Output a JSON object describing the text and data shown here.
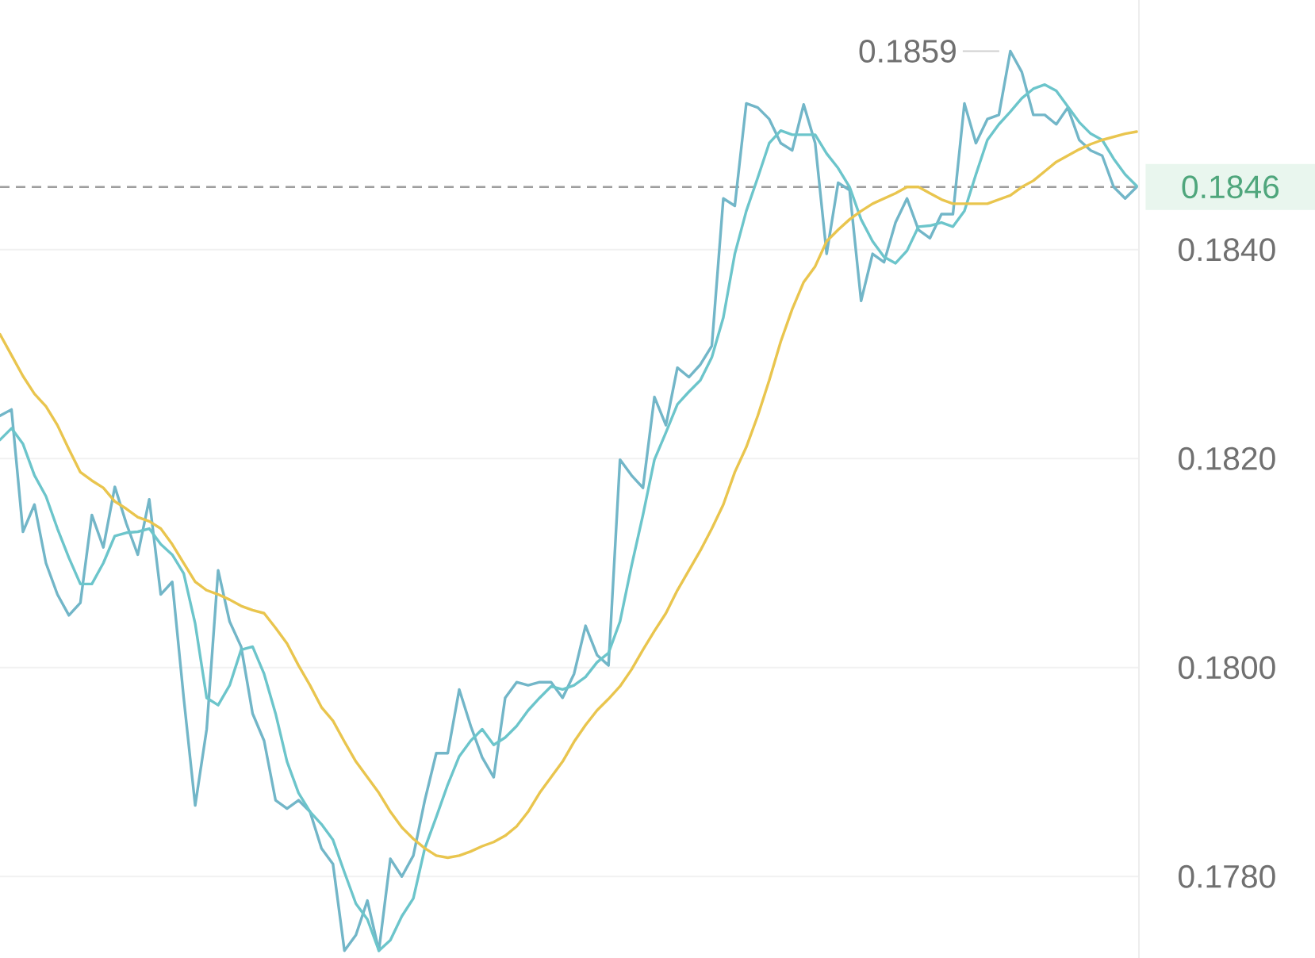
{
  "chart_data": {
    "type": "line",
    "categories": [
      null,
      null,
      null,
      null,
      null,
      null,
      null,
      null,
      null,
      null,
      null,
      null,
      null,
      null,
      null,
      null,
      null,
      null,
      null,
      null,
      null,
      null,
      null,
      null,
      null,
      null,
      null,
      null,
      null,
      null,
      null,
      null,
      null,
      null,
      null,
      null,
      null,
      null,
      null,
      null,
      null,
      null,
      null,
      null,
      null,
      null,
      null,
      null,
      null,
      null,
      null,
      null,
      null,
      null,
      null,
      null,
      null,
      null,
      null,
      null,
      null,
      null,
      null,
      null,
      null,
      null,
      null,
      null,
      null,
      null,
      null,
      null,
      null,
      null,
      null,
      null,
      null,
      null,
      null,
      null,
      null,
      null,
      null,
      null,
      null,
      null,
      null,
      null,
      null,
      null,
      null,
      null,
      null,
      null,
      null,
      null,
      null,
      null,
      null,
      null
    ],
    "series": [
      {
        "color": "#72b6c8",
        "values": [
          0.18241,
          0.18247,
          0.1813,
          0.18156,
          0.181,
          0.1807,
          0.1805,
          0.18062,
          0.18146,
          0.18115,
          0.18173,
          0.18138,
          0.18108,
          0.18161,
          0.1807,
          0.18082,
          0.17971,
          0.17868,
          0.17941,
          0.18093,
          0.18044,
          0.1802,
          0.17956,
          0.1793,
          0.17873,
          0.17865,
          0.17873,
          0.17862,
          0.17827,
          0.17812,
          0.17729,
          0.17744,
          0.17777,
          0.17729,
          0.17817,
          0.178,
          0.1782,
          0.17873,
          0.17918,
          0.17918,
          0.17979,
          0.17944,
          0.17914,
          0.17895,
          0.17971,
          0.17986,
          0.17983,
          0.17986,
          0.17986,
          0.17971,
          0.17994,
          0.1804,
          0.18012,
          0.18002,
          0.18199,
          0.18184,
          0.18172,
          0.18259,
          0.18232,
          0.18287,
          0.18278,
          0.1829,
          0.18308,
          0.18449,
          0.18442,
          0.1854,
          0.18536,
          0.18525,
          0.18502,
          0.18495,
          0.18539,
          0.18502,
          0.18396,
          0.18464,
          0.18457,
          0.18351,
          0.18396,
          0.18388,
          0.18426,
          0.18449,
          0.18419,
          0.18411,
          0.18434,
          0.18434,
          0.1854,
          0.18502,
          0.18525,
          0.18529,
          0.1859,
          0.1857,
          0.18529,
          0.18529,
          0.1852,
          0.18536,
          0.18505,
          0.18495,
          0.1849,
          0.1846,
          0.18449,
          0.1846
        ]
      },
      {
        "color": "#6cc5cb",
        "values": [
          0.18218,
          0.18229,
          0.18214,
          0.18184,
          0.18164,
          0.18133,
          0.18105,
          0.1808,
          0.1808,
          0.181,
          0.18126,
          0.18129,
          0.1813,
          0.18133,
          0.18118,
          0.18108,
          0.1809,
          0.18042,
          0.17971,
          0.17964,
          0.17983,
          0.18017,
          0.1802,
          0.17994,
          0.17956,
          0.1791,
          0.1788,
          0.17862,
          0.1785,
          0.17835,
          0.17804,
          0.17774,
          0.17759,
          0.17729,
          0.17739,
          0.17762,
          0.17779,
          0.17827,
          0.17857,
          0.17888,
          0.17915,
          0.1793,
          0.17941,
          0.17926,
          0.17933,
          0.17944,
          0.17959,
          0.17971,
          0.17982,
          0.17979,
          0.17983,
          0.17991,
          0.18005,
          0.18014,
          0.18044,
          0.18097,
          0.18146,
          0.18199,
          0.18225,
          0.18252,
          0.18264,
          0.18275,
          0.18297,
          0.18335,
          0.18396,
          0.18437,
          0.18469,
          0.18502,
          0.18514,
          0.1851,
          0.1851,
          0.1851,
          0.18492,
          0.18478,
          0.1846,
          0.18429,
          0.18408,
          0.18393,
          0.18387,
          0.18399,
          0.18422,
          0.18423,
          0.18426,
          0.18422,
          0.18437,
          0.18472,
          0.18505,
          0.1852,
          0.18532,
          0.18545,
          0.18554,
          0.18558,
          0.18552,
          0.18537,
          0.18522,
          0.18511,
          0.18505,
          0.18487,
          0.18472,
          0.18461
        ]
      },
      {
        "color": "#e9c54e",
        "values": [
          0.18319,
          0.18299,
          0.18279,
          0.18262,
          0.1825,
          0.18232,
          0.18209,
          0.18187,
          0.18179,
          0.18172,
          0.18159,
          0.18152,
          0.18144,
          0.1814,
          0.18133,
          0.18118,
          0.181,
          0.18082,
          0.18074,
          0.1807,
          0.18065,
          0.18059,
          0.18055,
          0.18052,
          0.18038,
          0.18023,
          0.18002,
          0.17983,
          0.17962,
          0.17949,
          0.17929,
          0.1791,
          0.17895,
          0.1788,
          0.17862,
          0.17847,
          0.17836,
          0.17827,
          0.1782,
          0.17818,
          0.1782,
          0.17824,
          0.17829,
          0.17833,
          0.17839,
          0.17848,
          0.17862,
          0.1788,
          0.17895,
          0.1791,
          0.17929,
          0.17945,
          0.17959,
          0.1797,
          0.17982,
          0.17998,
          0.18017,
          0.18035,
          0.18052,
          0.18074,
          0.18093,
          0.18112,
          0.18133,
          0.18156,
          0.18187,
          0.18211,
          0.18241,
          0.18275,
          0.18312,
          0.18343,
          0.18369,
          0.18384,
          0.18408,
          0.18419,
          0.18429,
          0.18437,
          0.18444,
          0.18449,
          0.18454,
          0.1846,
          0.1846,
          0.18454,
          0.18448,
          0.18444,
          0.18444,
          0.18444,
          0.18444,
          0.18448,
          0.18452,
          0.1846,
          0.18466,
          0.18475,
          0.18484,
          0.1849,
          0.18496,
          0.18501,
          0.18505,
          0.18508,
          0.18511,
          0.18513
        ]
      }
    ],
    "ylim": [
      0.17722,
      0.18639
    ],
    "yticks": [
      {
        "value": 0.178,
        "label": "0.1780"
      },
      {
        "value": 0.18,
        "label": "0.1800"
      },
      {
        "value": 0.182,
        "label": "0.1820"
      },
      {
        "value": 0.184,
        "label": "0.1840"
      }
    ],
    "grid": "y",
    "tick_labels": "y",
    "marker": "none",
    "ref_lines": [
      {
        "axis": "y",
        "value": 0.1846,
        "label": "0.1846",
        "color": "#9e9e9e",
        "line_style": "dashed"
      }
    ],
    "annotations": [
      "0.1859"
    ]
  }
}
